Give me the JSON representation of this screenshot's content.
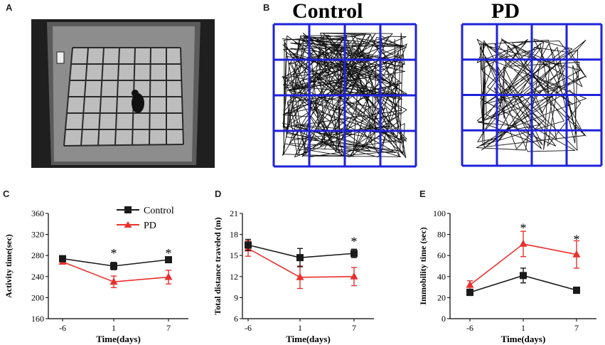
{
  "panels": {
    "A": {
      "letter": "A"
    },
    "B": {
      "letter": "B",
      "titles": [
        "Control",
        "PD"
      ]
    },
    "C": {
      "letter": "C"
    },
    "D": {
      "letter": "D"
    },
    "E": {
      "letter": "E"
    }
  },
  "colors": {
    "control": "#1a1a1a",
    "pd": "#e8312f",
    "grid": "#1f22d9"
  },
  "legend": [
    {
      "name": "Control",
      "marker": "square"
    },
    {
      "name": "PD",
      "marker": "triangle"
    }
  ],
  "chart_data": [
    {
      "type": "line",
      "id": "C",
      "categories": [
        "-6",
        "1",
        "7"
      ],
      "xlabel": "Time(days)",
      "ylabel": "Activity time(sec)",
      "ylim": [
        160,
        360
      ],
      "yticks": [
        160,
        200,
        240,
        280,
        320,
        360
      ],
      "series": [
        {
          "name": "Control",
          "values": [
            274,
            260,
            272
          ],
          "errors": [
            3,
            7,
            4
          ]
        },
        {
          "name": "PD",
          "values": [
            268,
            230,
            239
          ],
          "errors": [
            3,
            11,
            13
          ]
        }
      ],
      "annotations": [
        {
          "category": "1",
          "text": "*",
          "at": 290
        },
        {
          "category": "7",
          "text": "*",
          "at": 290
        }
      ]
    },
    {
      "type": "line",
      "id": "D",
      "categories": [
        "-6",
        "1",
        "7"
      ],
      "xlabel": "Time(days)",
      "ylabel": "Total distance traveled (m)",
      "ylim": [
        6,
        21
      ],
      "yticks": [
        6,
        9,
        12,
        15,
        18,
        21
      ],
      "series": [
        {
          "name": "Control",
          "values": [
            16.5,
            14.7,
            15.3
          ],
          "errors": [
            0.8,
            1.3,
            0.6
          ]
        },
        {
          "name": "PD",
          "values": [
            16.0,
            11.9,
            12.0
          ],
          "errors": [
            1.1,
            1.6,
            1.3
          ]
        }
      ],
      "annotations": [
        {
          "category": "7",
          "text": "*",
          "at": 17.4
        }
      ]
    },
    {
      "type": "line",
      "id": "E",
      "categories": [
        "-6",
        "1",
        "7"
      ],
      "xlabel": "Time(days)",
      "ylabel": "Immobility time (sec)",
      "ylim": [
        0,
        100
      ],
      "yticks": [
        0,
        20,
        40,
        60,
        80,
        100
      ],
      "series": [
        {
          "name": "Control",
          "values": [
            25,
            41,
            27
          ],
          "errors": [
            3,
            7,
            3
          ]
        },
        {
          "name": "PD",
          "values": [
            32,
            71,
            61
          ],
          "errors": [
            4,
            12,
            13
          ]
        }
      ],
      "annotations": [
        {
          "category": "1",
          "text": "*",
          "at": 89
        },
        {
          "category": "7",
          "text": "*",
          "at": 78
        }
      ]
    }
  ]
}
